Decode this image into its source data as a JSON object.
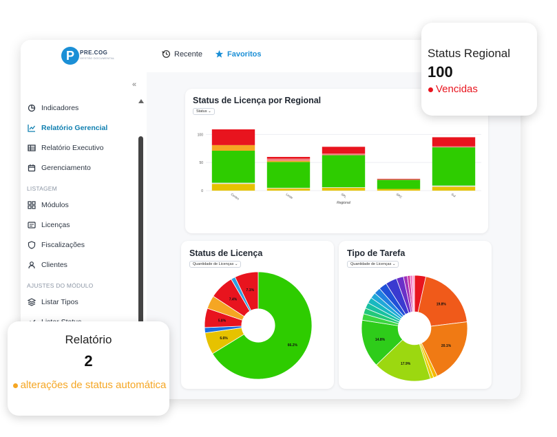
{
  "app": {
    "logo_letter": "P",
    "logo_text": "PRE.COG",
    "logo_subtext": "GESTÃO DOCUMENTAL"
  },
  "topbar": {
    "recent_label": "Recente",
    "favorites_label": "Favoritos",
    "accent_color": "#1b8fd6"
  },
  "sidebar": {
    "collapse_icon": "«",
    "items_top": [
      {
        "label": "Indicadores",
        "icon": "pie-chart-icon",
        "active": false
      },
      {
        "label": "Relatório Gerencial",
        "icon": "line-chart-icon",
        "active": true
      },
      {
        "label": "Relatório Executivo",
        "icon": "table-icon",
        "active": false
      },
      {
        "label": "Gerenciamento",
        "icon": "calendar-icon",
        "active": false
      }
    ],
    "section_listagem": "LISTAGEM",
    "items_listagem": [
      {
        "label": "Módulos",
        "icon": "grid-icon"
      },
      {
        "label": "Licenças",
        "icon": "id-card-icon"
      },
      {
        "label": "Fiscalizações",
        "icon": "shield-icon"
      },
      {
        "label": "Clientes",
        "icon": "user-icon"
      }
    ],
    "section_ajustes": "AJUSTES DO MÓDULO",
    "items_ajustes": [
      {
        "label": "Listar Tipos",
        "icon": "layers-icon"
      },
      {
        "label": "Listar Status",
        "icon": "status-icon"
      }
    ]
  },
  "cards": {
    "regional": {
      "title": "Status de Licença por Regional",
      "dropdown": "Status"
    },
    "licenca": {
      "title": "Status de Licença",
      "dropdown": "Quantidade de Licenças"
    },
    "tarefa": {
      "title": "Tipo de Tarefa",
      "dropdown": "Quantidade de Licenças"
    }
  },
  "chart_data": [
    {
      "type": "bar",
      "title": "Status de Licença por Regional",
      "xlabel": "Regional",
      "ylabel": "",
      "ylim": [
        0,
        120
      ],
      "yticks": [
        "0",
        "50",
        "100"
      ],
      "categories": [
        "Centro",
        "Leste",
        "SPL",
        "SPC",
        "Sul"
      ],
      "stacked": true,
      "series": [
        {
          "color": "#e6c200",
          "values": [
            12,
            4,
            5,
            3,
            7
          ]
        },
        {
          "color": "#e8e8e8",
          "values": [
            2,
            1,
            1,
            0,
            2
          ]
        },
        {
          "color": "#2ecc00",
          "values": [
            57,
            46,
            57,
            16,
            68
          ]
        },
        {
          "color": "#f5a623",
          "values": [
            10,
            2,
            0,
            0,
            0
          ]
        },
        {
          "color": "#f08080",
          "values": [
            0,
            4,
            3,
            1,
            2
          ]
        },
        {
          "color": "#e8141e",
          "values": [
            28,
            3,
            12,
            1,
            16
          ]
        }
      ]
    },
    {
      "type": "pie",
      "title": "Status de Licença",
      "slices": [
        {
          "label": "66.2%",
          "value": 66.2,
          "color": "#2ecc00"
        },
        {
          "label": "6.6%",
          "value": 6.6,
          "color": "#e6c200"
        },
        {
          "label": "",
          "value": 1.6,
          "color": "#1b6fe0"
        },
        {
          "label": "5.8%",
          "value": 5.8,
          "color": "#e8141e"
        },
        {
          "label": "",
          "value": 4.0,
          "color": "#f5a623"
        },
        {
          "label": "7.4%",
          "value": 7.4,
          "color": "#e8141e"
        },
        {
          "label": "",
          "value": 1.3,
          "color": "#2f9fe0"
        },
        {
          "label": "7.1%",
          "value": 7.1,
          "color": "#e8141e"
        }
      ]
    },
    {
      "type": "pie",
      "title": "Tipo de Tarefa",
      "slices": [
        {
          "label": "",
          "value": 3.5,
          "color": "#e8141e"
        },
        {
          "label": "19.8%",
          "value": 19.8,
          "color": "#f05a1a"
        },
        {
          "label": "20.1%",
          "value": 20.1,
          "color": "#f07a14"
        },
        {
          "label": "",
          "value": 1.2,
          "color": "#f5b800"
        },
        {
          "label": "",
          "value": 1.0,
          "color": "#e6d000"
        },
        {
          "label": "17.9%",
          "value": 17.9,
          "color": "#9cd810"
        },
        {
          "label": "14.8%",
          "value": 14.8,
          "color": "#2ecc1a"
        },
        {
          "label": "",
          "value": 2.0,
          "color": "#3bd640"
        },
        {
          "label": "",
          "value": 1.8,
          "color": "#22c87a"
        },
        {
          "label": "",
          "value": 1.8,
          "color": "#19c0a0"
        },
        {
          "label": "",
          "value": 1.8,
          "color": "#18b8c0"
        },
        {
          "label": "",
          "value": 1.8,
          "color": "#20a8d8"
        },
        {
          "label": "",
          "value": 2.0,
          "color": "#2080e0"
        },
        {
          "label": "",
          "value": 2.5,
          "color": "#2050d8"
        },
        {
          "label": "",
          "value": 3.5,
          "color": "#3a3ad0"
        },
        {
          "label": "",
          "value": 2.2,
          "color": "#6a30c8"
        },
        {
          "label": "",
          "value": 1.2,
          "color": "#a030b8"
        },
        {
          "label": "",
          "value": 0.9,
          "color": "#d040a0"
        },
        {
          "label": "",
          "value": 0.7,
          "color": "#f070c0"
        },
        {
          "label": "",
          "value": 0.6,
          "color": "#ff9ad0"
        }
      ]
    }
  ],
  "overlay_regional": {
    "label": "Status Regional",
    "value": "100",
    "status_text": "Vencidas",
    "status_color": "#e8141e"
  },
  "overlay_relatorio": {
    "label": "Relatório",
    "value": "2",
    "status_text": "alterações de status automática",
    "status_color": "#f5a623"
  }
}
